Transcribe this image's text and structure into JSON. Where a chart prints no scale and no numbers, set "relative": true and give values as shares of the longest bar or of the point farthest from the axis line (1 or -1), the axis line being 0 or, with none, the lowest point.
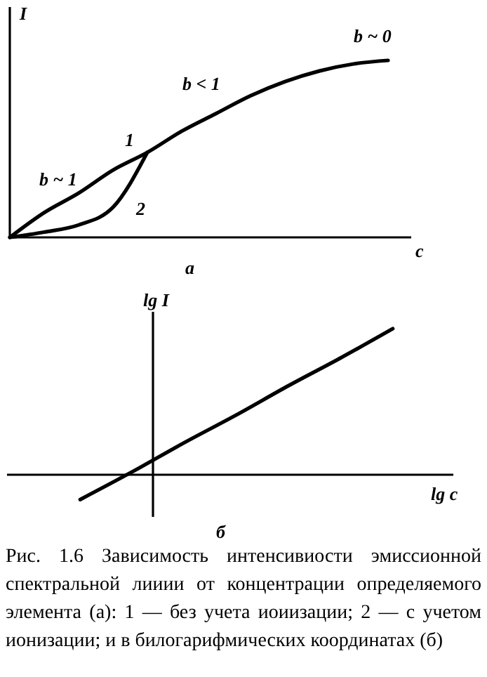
{
  "chart_data": [
    {
      "type": "line",
      "relative": true,
      "xlabel": "c",
      "ylabel": "I",
      "subtitle": "а",
      "categories": [
        null,
        null,
        null,
        null,
        null,
        null,
        null,
        null,
        null,
        null,
        null,
        null
      ],
      "series": [
        {
          "name": "1",
          "color": "#000000",
          "values": [
            0,
            0.14,
            0.25,
            0.38,
            0.48,
            0.6,
            0.7,
            0.8,
            0.88,
            0.94,
            0.98,
            1
          ]
        },
        {
          "name": "2",
          "color": "#000000",
          "values": [
            0,
            0.03,
            0.07,
            0.17,
            0.48,
            null,
            null,
            null,
            null,
            null,
            null,
            null
          ]
        }
      ],
      "annotations": [
        "b ~ 1",
        "b < 1",
        "b ~ 0"
      ]
    },
    {
      "type": "line",
      "relative": true,
      "xlabel": "lg c",
      "ylabel": "lg I",
      "subtitle": "б",
      "categories": [
        null,
        null,
        null,
        null,
        null,
        null,
        null,
        null,
        null
      ],
      "series": [
        {
          "color": "#000000",
          "values": [
            null,
            -0.17,
            0.02,
            0.22,
            0.41,
            0.61,
            0.8,
            1,
            null
          ]
        }
      ],
      "annotations": [
        "Рис. 1.6 Зависимость интенсивиости эмиссионной спектральной лииии от концентрации определяемого элемента (а): 1 — без учета иоиизации; 2 — с учетом ионизации; и в билогарифмических координатах (б)"
      ]
    }
  ]
}
